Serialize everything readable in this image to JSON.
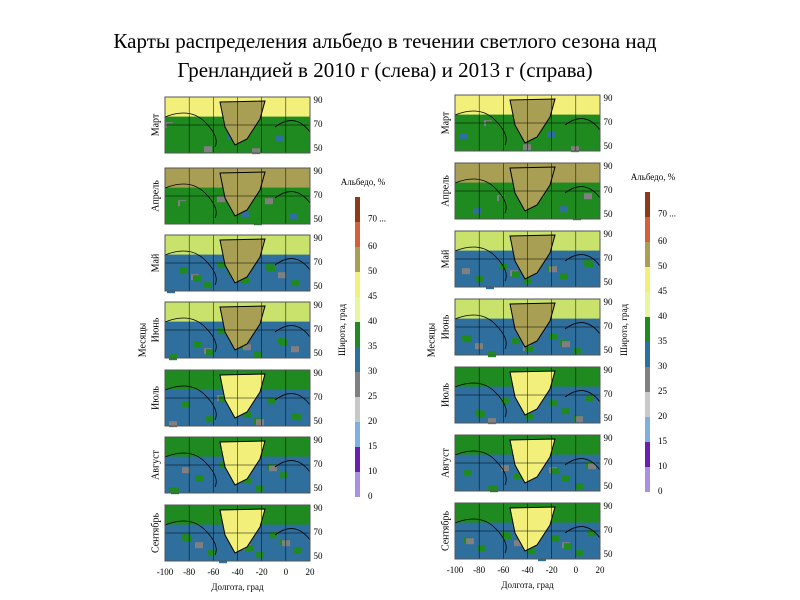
{
  "title": [
    "Карты распределения альбедо в течении светлого сезона над",
    "Гренландией в 2010 г (слева) и 2013 г (справа)"
  ],
  "panels": [
    {
      "months": [
        "Март",
        "Апрель",
        "Май",
        "Июнь",
        "Июль",
        "Август",
        "Сентябрь"
      ],
      "y_label": "Месяцы",
      "lat_label": "Широта, град",
      "lon_label": "Долгота, град",
      "lat_ticks": [
        90,
        70,
        50
      ],
      "lon_ticks": [
        -100,
        -80,
        -60,
        -40,
        -20,
        0,
        20
      ],
      "colorbar": {
        "title": "Альбедо, %",
        "labels": [
          "70 ...",
          60,
          50,
          45,
          40,
          35,
          30,
          25,
          20,
          15,
          10,
          0
        ]
      }
    },
    {
      "months": [
        "Март",
        "Апрель",
        "Май",
        "Июнь",
        "Июль",
        "Август",
        "Сентябрь"
      ],
      "y_label": "Месяцы",
      "lat_label": "Широта, град",
      "lon_label": "Долгота, град",
      "lat_ticks": [
        90,
        70,
        50
      ],
      "lon_ticks": [
        -100,
        -80,
        -60,
        -40,
        -20,
        0,
        20
      ],
      "colorbar": {
        "title": "Альбедо, %",
        "labels": [
          "70 ...",
          60,
          50,
          45,
          40,
          35,
          30,
          25,
          20,
          15,
          10,
          0
        ]
      }
    }
  ]
}
